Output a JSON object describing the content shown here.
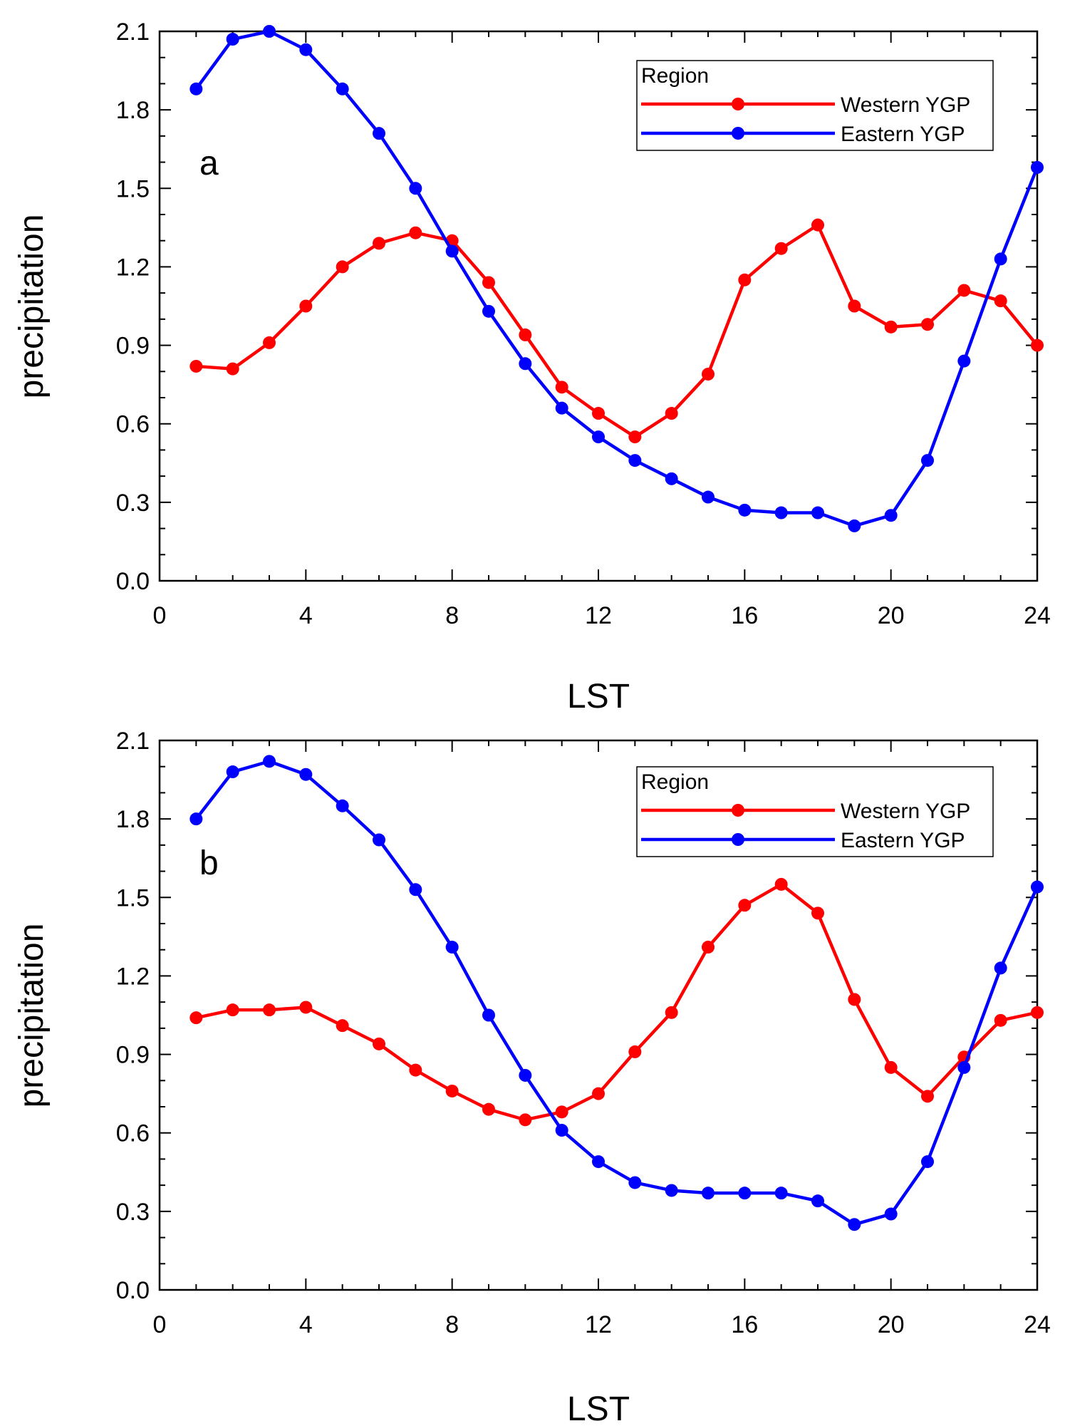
{
  "chart_data": [
    {
      "type": "line",
      "panel_label": "a",
      "title": "",
      "xlabel": "LST",
      "ylabel": "precipitation",
      "xlim": [
        0,
        24
      ],
      "ylim": [
        0,
        2.1
      ],
      "x_ticks": [
        "0",
        "4",
        "8",
        "12",
        "16",
        "20",
        "24"
      ],
      "y_ticks": [
        "0.0",
        "0.3",
        "0.6",
        "0.9",
        "1.2",
        "1.5",
        "1.8",
        "2.1"
      ],
      "legend": {
        "title": "Region",
        "position": "top-right"
      },
      "x": [
        1,
        2,
        3,
        4,
        5,
        6,
        7,
        8,
        9,
        10,
        11,
        12,
        13,
        14,
        15,
        16,
        17,
        18,
        19,
        20,
        21,
        22,
        23,
        24
      ],
      "series": [
        {
          "name": "Western YGP",
          "color": "#ff0000",
          "values": [
            0.82,
            0.81,
            0.91,
            1.05,
            1.2,
            1.29,
            1.33,
            1.3,
            1.14,
            0.94,
            0.74,
            0.64,
            0.55,
            0.64,
            0.79,
            1.15,
            1.27,
            1.36,
            1.05,
            0.97,
            0.98,
            1.11,
            1.07,
            0.9
          ]
        },
        {
          "name": "Eastern YGP",
          "color": "#0000ff",
          "values": [
            1.88,
            2.07,
            2.1,
            2.03,
            1.88,
            1.71,
            1.5,
            1.26,
            1.03,
            0.83,
            0.66,
            0.55,
            0.46,
            0.39,
            0.32,
            0.27,
            0.26,
            0.26,
            0.21,
            0.25,
            0.46,
            0.84,
            1.23,
            1.58
          ]
        }
      ]
    },
    {
      "type": "line",
      "panel_label": "b",
      "title": "",
      "xlabel": "LST",
      "ylabel": "precipitation",
      "xlim": [
        0,
        24
      ],
      "ylim": [
        0,
        2.1
      ],
      "x_ticks": [
        "0",
        "4",
        "8",
        "12",
        "16",
        "20",
        "24"
      ],
      "y_ticks": [
        "0.0",
        "0.3",
        "0.6",
        "0.9",
        "1.2",
        "1.5",
        "1.8",
        "2.1"
      ],
      "legend": {
        "title": "Region",
        "position": "top-right"
      },
      "x": [
        1,
        2,
        3,
        4,
        5,
        6,
        7,
        8,
        9,
        10,
        11,
        12,
        13,
        14,
        15,
        16,
        17,
        18,
        19,
        20,
        21,
        22,
        23,
        24
      ],
      "series": [
        {
          "name": "Western YGP",
          "color": "#ff0000",
          "values": [
            1.04,
            1.07,
            1.07,
            1.08,
            1.01,
            0.94,
            0.84,
            0.76,
            0.69,
            0.65,
            0.68,
            0.75,
            0.91,
            1.06,
            1.31,
            1.47,
            1.55,
            1.44,
            1.11,
            0.85,
            0.74,
            0.89,
            1.03,
            1.06
          ]
        },
        {
          "name": "Eastern YGP",
          "color": "#0000ff",
          "values": [
            1.8,
            1.98,
            2.02,
            1.97,
            1.85,
            1.72,
            1.53,
            1.31,
            1.05,
            0.82,
            0.61,
            0.49,
            0.41,
            0.38,
            0.37,
            0.37,
            0.37,
            0.34,
            0.25,
            0.29,
            0.49,
            0.85,
            1.23,
            1.54
          ]
        }
      ]
    }
  ]
}
